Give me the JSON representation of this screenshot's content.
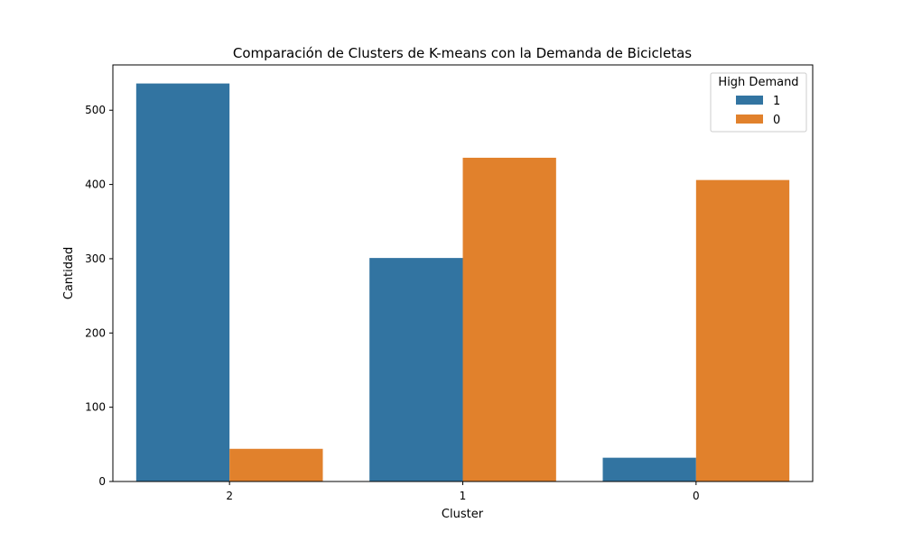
{
  "chart_data": {
    "type": "bar",
    "title": "Comparación de Clusters de K-means con la Demanda de Bicicletas",
    "xlabel": "Cluster",
    "ylabel": "Cantidad",
    "categories": [
      "2",
      "1",
      "0"
    ],
    "series": [
      {
        "name": "1",
        "color": "#3274a1",
        "values": [
          536,
          301,
          32
        ]
      },
      {
        "name": "0",
        "color": "#e1812c",
        "values": [
          44,
          436,
          406
        ]
      }
    ],
    "ylim": [
      0,
      561
    ],
    "yticks": [
      0,
      100,
      200,
      300,
      400,
      500
    ],
    "legend": {
      "title": "High Demand",
      "placement": "top-right"
    },
    "grid": false
  }
}
